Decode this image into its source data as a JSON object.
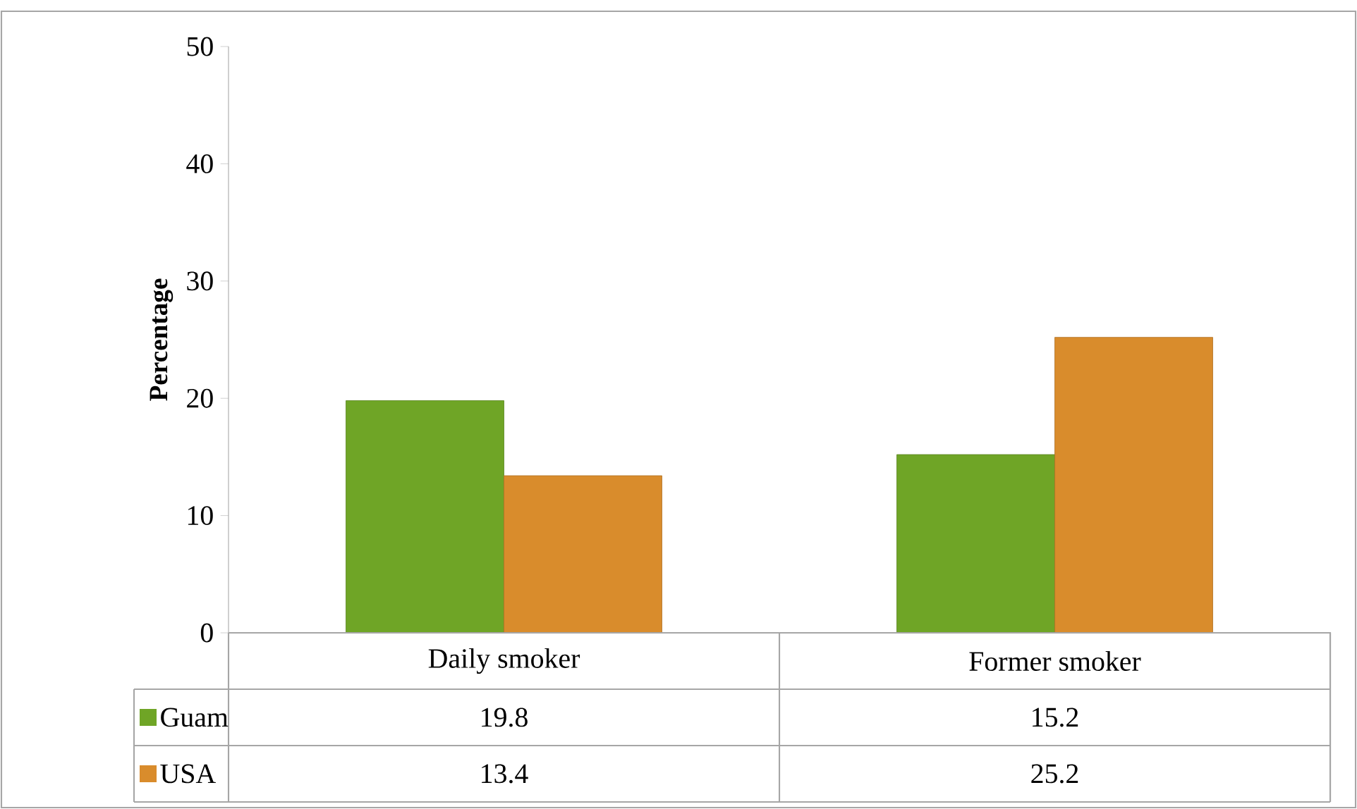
{
  "chart_data": {
    "type": "bar",
    "ylabel": "Percentage",
    "categories": [
      "Daily smoker",
      "Former smoker"
    ],
    "series": [
      {
        "name": "Guam",
        "color": "#6fa526",
        "values": [
          19.8,
          15.2
        ]
      },
      {
        "name": "USA",
        "color": "#d98c2c",
        "values": [
          13.4,
          25.2
        ]
      }
    ],
    "ylim": [
      0,
      50
    ],
    "yticks": [
      0,
      10,
      20,
      30,
      40,
      50
    ],
    "data_labels": true,
    "legend": "bottom"
  }
}
